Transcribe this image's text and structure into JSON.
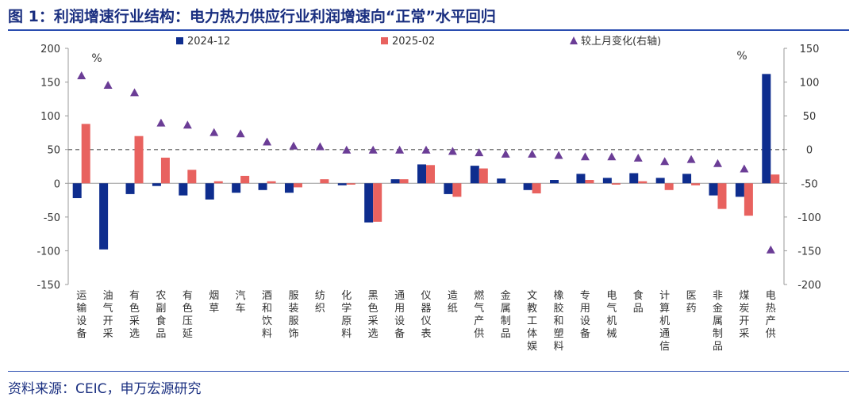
{
  "title": "图 1：利润增速行业结构：电力热力供应行业利润增速向“正常”水平回归",
  "source": "资料来源：CEIC，申万宏源研究",
  "colors": {
    "series_2024_12": "#0e2d8e",
    "series_2025_02": "#e8625f",
    "change_marker": "#6b3d96",
    "zero_dash": "#808080",
    "axis": "#999999"
  },
  "chart_data": {
    "type": "bar",
    "categories": [
      "运输设备",
      "油气开采",
      "有色采选",
      "农副食品",
      "有色压延",
      "烟草",
      "汽车",
      "酒和饮料",
      "服装服饰",
      "纺织",
      "化学原料",
      "黑色采选",
      "通用设备",
      "仪器仪表",
      "造纸",
      "燃气产供",
      "金属制品",
      "文教工体娱",
      "橡胶和塑料",
      "专用设备",
      "电气机械",
      "食品",
      "计算机通信",
      "医药",
      "非金属制品",
      "煤炭开采",
      "电热产供"
    ],
    "series": [
      {
        "name": "2024-12",
        "kind": "bar",
        "axis": "left",
        "values": [
          -22,
          -98,
          -16,
          -4,
          -18,
          -24,
          -14,
          -10,
          -14,
          0,
          -3,
          -58,
          6,
          28,
          -16,
          26,
          7,
          -10,
          5,
          14,
          8,
          15,
          8,
          14,
          -18,
          -20,
          162
        ]
      },
      {
        "name": "2025-02",
        "kind": "bar",
        "axis": "left",
        "values": [
          88,
          0,
          70,
          38,
          20,
          3,
          11,
          3,
          -6,
          6,
          -2,
          -57,
          6,
          27,
          -20,
          22,
          0,
          -15,
          0,
          5,
          -2,
          3,
          -10,
          -3,
          -38,
          -48,
          13
        ]
      },
      {
        "name": "较上月变化(右轴)",
        "kind": "marker",
        "axis": "right",
        "values": [
          110,
          96,
          85,
          40,
          37,
          26,
          24,
          12,
          6,
          5,
          0,
          0,
          0,
          0,
          -2,
          -4,
          -6,
          -6,
          -8,
          -10,
          -10,
          -12,
          -17,
          -14,
          -20,
          -28,
          -148
        ]
      }
    ],
    "y_left": {
      "min": -150,
      "max": 200,
      "ticks": [
        -150,
        -100,
        -50,
        0,
        50,
        100,
        150,
        200
      ],
      "unit": "%"
    },
    "y_right": {
      "min": -200,
      "max": 150,
      "ticks": [
        -200,
        -150,
        -100,
        -50,
        0,
        50,
        100,
        150
      ],
      "unit": "%"
    },
    "legend": {
      "placement": "top"
    },
    "grid": false
  }
}
